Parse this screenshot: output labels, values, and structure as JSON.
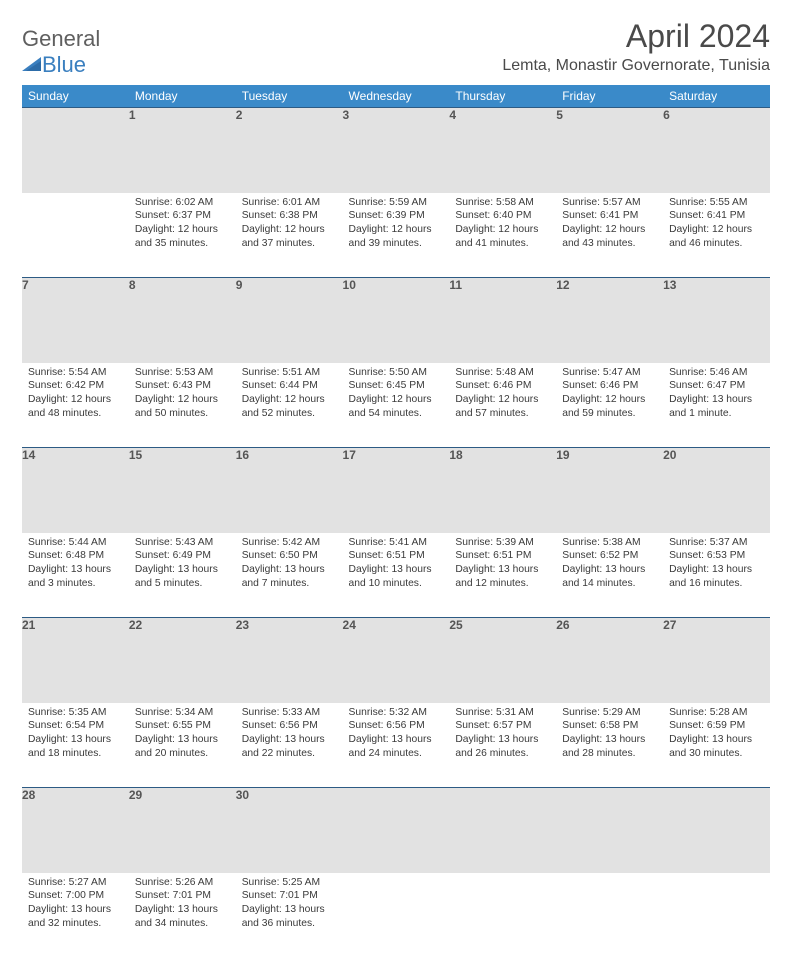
{
  "logo": {
    "word1": "General",
    "word2": "Blue"
  },
  "title": "April 2024",
  "location": "Lemta, Monastir Governorate, Tunisia",
  "colors": {
    "header_bg": "#3a8ac9",
    "header_text": "#ffffff",
    "daynum_bg": "#e2e2e2",
    "rule": "#2d5b84",
    "body_text": "#3a3a3a",
    "logo_gray": "#5f5f5f",
    "logo_blue": "#3a7fbf"
  },
  "weekdays": [
    "Sunday",
    "Monday",
    "Tuesday",
    "Wednesday",
    "Thursday",
    "Friday",
    "Saturday"
  ],
  "weeks": [
    [
      null,
      {
        "n": "1",
        "sr": "6:02 AM",
        "ss": "6:37 PM",
        "dl": "12 hours and 35 minutes."
      },
      {
        "n": "2",
        "sr": "6:01 AM",
        "ss": "6:38 PM",
        "dl": "12 hours and 37 minutes."
      },
      {
        "n": "3",
        "sr": "5:59 AM",
        "ss": "6:39 PM",
        "dl": "12 hours and 39 minutes."
      },
      {
        "n": "4",
        "sr": "5:58 AM",
        "ss": "6:40 PM",
        "dl": "12 hours and 41 minutes."
      },
      {
        "n": "5",
        "sr": "5:57 AM",
        "ss": "6:41 PM",
        "dl": "12 hours and 43 minutes."
      },
      {
        "n": "6",
        "sr": "5:55 AM",
        "ss": "6:41 PM",
        "dl": "12 hours and 46 minutes."
      }
    ],
    [
      {
        "n": "7",
        "sr": "5:54 AM",
        "ss": "6:42 PM",
        "dl": "12 hours and 48 minutes."
      },
      {
        "n": "8",
        "sr": "5:53 AM",
        "ss": "6:43 PM",
        "dl": "12 hours and 50 minutes."
      },
      {
        "n": "9",
        "sr": "5:51 AM",
        "ss": "6:44 PM",
        "dl": "12 hours and 52 minutes."
      },
      {
        "n": "10",
        "sr": "5:50 AM",
        "ss": "6:45 PM",
        "dl": "12 hours and 54 minutes."
      },
      {
        "n": "11",
        "sr": "5:48 AM",
        "ss": "6:46 PM",
        "dl": "12 hours and 57 minutes."
      },
      {
        "n": "12",
        "sr": "5:47 AM",
        "ss": "6:46 PM",
        "dl": "12 hours and 59 minutes."
      },
      {
        "n": "13",
        "sr": "5:46 AM",
        "ss": "6:47 PM",
        "dl": "13 hours and 1 minute."
      }
    ],
    [
      {
        "n": "14",
        "sr": "5:44 AM",
        "ss": "6:48 PM",
        "dl": "13 hours and 3 minutes."
      },
      {
        "n": "15",
        "sr": "5:43 AM",
        "ss": "6:49 PM",
        "dl": "13 hours and 5 minutes."
      },
      {
        "n": "16",
        "sr": "5:42 AM",
        "ss": "6:50 PM",
        "dl": "13 hours and 7 minutes."
      },
      {
        "n": "17",
        "sr": "5:41 AM",
        "ss": "6:51 PM",
        "dl": "13 hours and 10 minutes."
      },
      {
        "n": "18",
        "sr": "5:39 AM",
        "ss": "6:51 PM",
        "dl": "13 hours and 12 minutes."
      },
      {
        "n": "19",
        "sr": "5:38 AM",
        "ss": "6:52 PM",
        "dl": "13 hours and 14 minutes."
      },
      {
        "n": "20",
        "sr": "5:37 AM",
        "ss": "6:53 PM",
        "dl": "13 hours and 16 minutes."
      }
    ],
    [
      {
        "n": "21",
        "sr": "5:35 AM",
        "ss": "6:54 PM",
        "dl": "13 hours and 18 minutes."
      },
      {
        "n": "22",
        "sr": "5:34 AM",
        "ss": "6:55 PM",
        "dl": "13 hours and 20 minutes."
      },
      {
        "n": "23",
        "sr": "5:33 AM",
        "ss": "6:56 PM",
        "dl": "13 hours and 22 minutes."
      },
      {
        "n": "24",
        "sr": "5:32 AM",
        "ss": "6:56 PM",
        "dl": "13 hours and 24 minutes."
      },
      {
        "n": "25",
        "sr": "5:31 AM",
        "ss": "6:57 PM",
        "dl": "13 hours and 26 minutes."
      },
      {
        "n": "26",
        "sr": "5:29 AM",
        "ss": "6:58 PM",
        "dl": "13 hours and 28 minutes."
      },
      {
        "n": "27",
        "sr": "5:28 AM",
        "ss": "6:59 PM",
        "dl": "13 hours and 30 minutes."
      }
    ],
    [
      {
        "n": "28",
        "sr": "5:27 AM",
        "ss": "7:00 PM",
        "dl": "13 hours and 32 minutes."
      },
      {
        "n": "29",
        "sr": "5:26 AM",
        "ss": "7:01 PM",
        "dl": "13 hours and 34 minutes."
      },
      {
        "n": "30",
        "sr": "5:25 AM",
        "ss": "7:01 PM",
        "dl": "13 hours and 36 minutes."
      },
      null,
      null,
      null,
      null
    ]
  ],
  "labels": {
    "sunrise": "Sunrise:",
    "sunset": "Sunset:",
    "daylight": "Daylight:"
  }
}
